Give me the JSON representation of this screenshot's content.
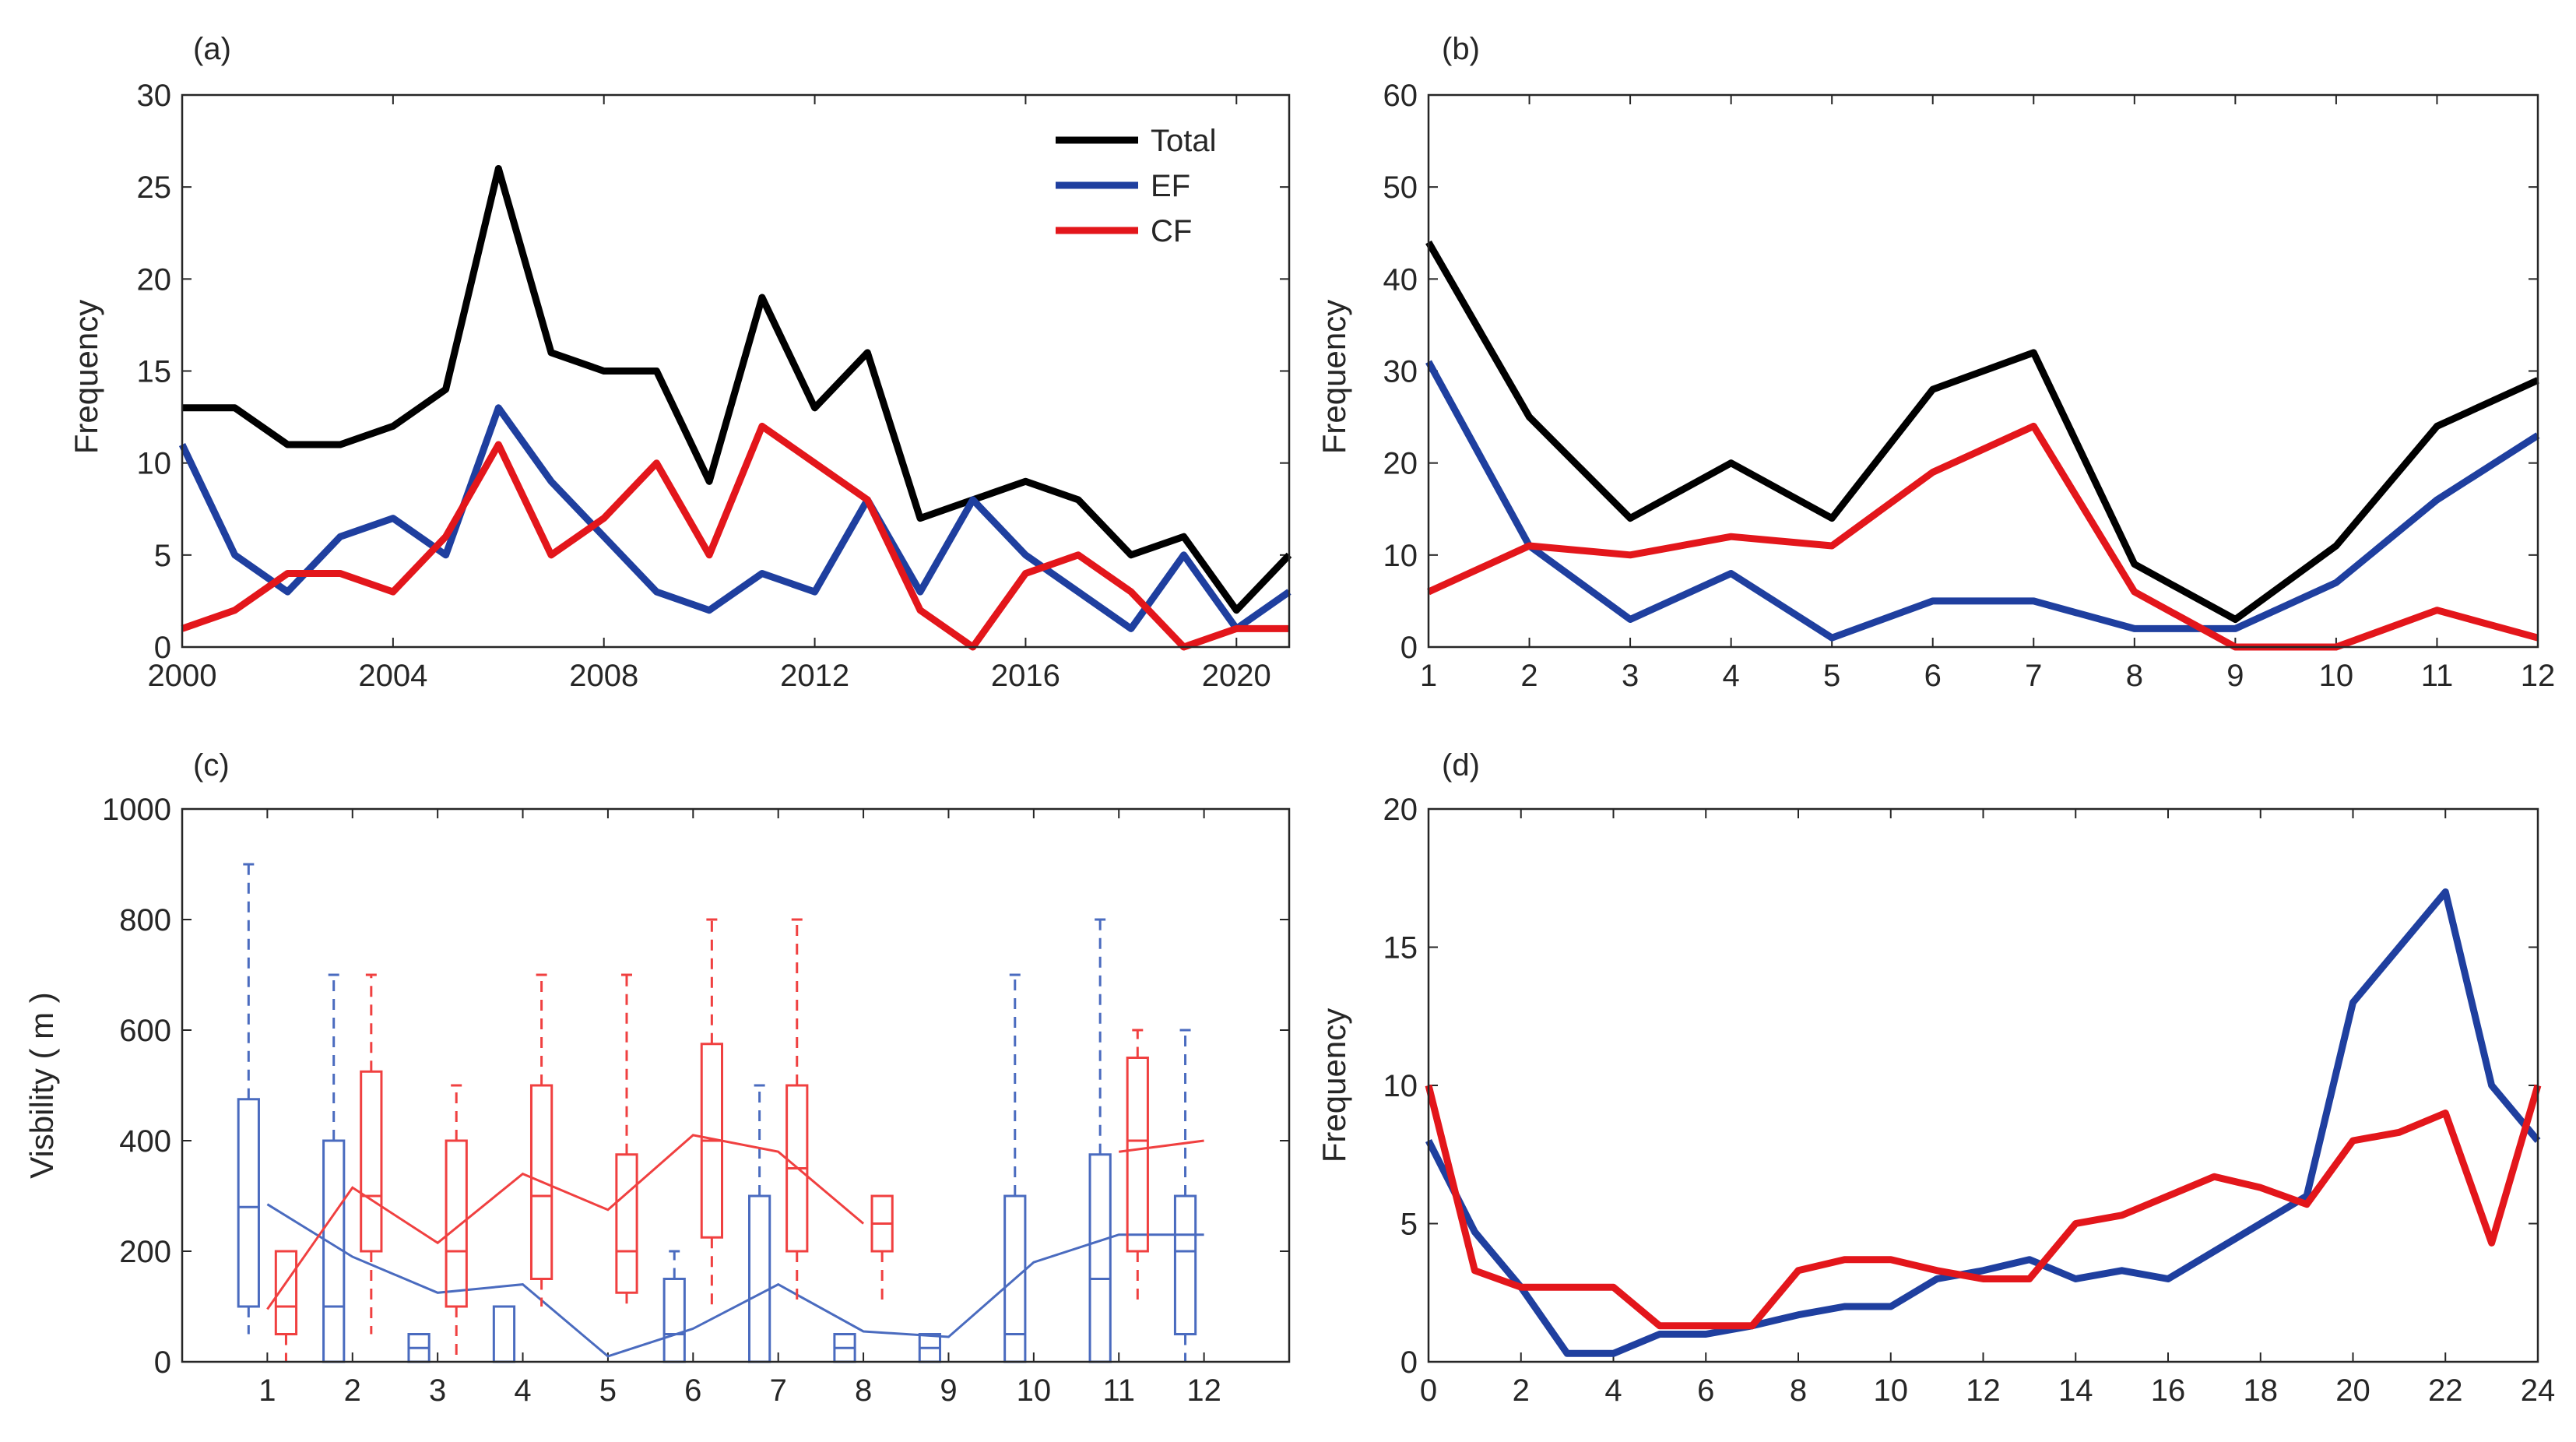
{
  "colors": {
    "total": "#000000",
    "ef": "#1f3f9f",
    "cf": "#e3161b",
    "axis": "#262626",
    "ef_light": "#4a6bbf",
    "cf_light": "#f04040"
  },
  "chart_data": [
    {
      "panel": "(a)",
      "type": "line",
      "ylabel": "Frequency",
      "xlabel": "",
      "xlim": [
        2000,
        2021
      ],
      "ylim": [
        0,
        30
      ],
      "xticks": [
        "2000",
        "2004",
        "2008",
        "2012",
        "2016",
        "2020"
      ],
      "yticks": [
        "0",
        "5",
        "10",
        "15",
        "20",
        "25",
        "30"
      ],
      "x": [
        2000,
        2001,
        2002,
        2003,
        2004,
        2005,
        2006,
        2007,
        2008,
        2009,
        2010,
        2011,
        2012,
        2013,
        2014,
        2015,
        2016,
        2017,
        2018,
        2019,
        2020,
        2021
      ],
      "legend": [
        "Total",
        "EF",
        "CF"
      ],
      "legend_position": "top-right",
      "series": [
        {
          "name": "Total",
          "color": "#000000",
          "values": [
            13,
            13,
            11,
            11,
            12,
            14,
            26,
            16,
            15,
            15,
            9,
            19,
            13,
            16,
            7,
            8,
            9,
            8,
            5,
            6,
            2,
            5
          ]
        },
        {
          "name": "EF",
          "color": "#1f3f9f",
          "values": [
            11,
            5,
            3,
            6,
            7,
            5,
            13,
            9,
            6,
            3,
            2,
            4,
            3,
            8,
            3,
            8,
            5,
            3,
            1,
            5,
            1,
            3
          ]
        },
        {
          "name": "CF",
          "color": "#e3161b",
          "values": [
            1,
            2,
            4,
            4,
            3,
            6,
            11,
            5,
            7,
            10,
            5,
            12,
            10,
            8,
            2,
            0,
            4,
            5,
            3,
            0,
            1,
            1
          ]
        }
      ]
    },
    {
      "panel": "(b)",
      "type": "line",
      "ylabel": "Frequency",
      "xlabel": "",
      "xlim": [
        1,
        12
      ],
      "ylim": [
        0,
        60
      ],
      "xticks": [
        "1",
        "2",
        "3",
        "4",
        "5",
        "6",
        "7",
        "8",
        "9",
        "10",
        "11",
        "12"
      ],
      "yticks": [
        "0",
        "10",
        "20",
        "30",
        "40",
        "50",
        "60"
      ],
      "x": [
        1,
        2,
        3,
        4,
        5,
        6,
        7,
        8,
        9,
        10,
        11,
        12
      ],
      "series": [
        {
          "name": "Total",
          "color": "#000000",
          "values": [
            44,
            25,
            14,
            20,
            14,
            28,
            32,
            9,
            3,
            11,
            24,
            29
          ]
        },
        {
          "name": "EF",
          "color": "#1f3f9f",
          "values": [
            31,
            11,
            3,
            8,
            1,
            5,
            5,
            2,
            2,
            7,
            16,
            23
          ]
        },
        {
          "name": "CF",
          "color": "#e3161b",
          "values": [
            6,
            11,
            10,
            12,
            11,
            19,
            24,
            6,
            0,
            0,
            4,
            1
          ]
        }
      ]
    },
    {
      "panel": "(c)",
      "type": "box",
      "ylabel": "Visbility ( m )",
      "xlabel": "",
      "xlim": [
        0,
        13
      ],
      "ylim": [
        0,
        1000
      ],
      "xticks": [
        "1",
        "2",
        "3",
        "4",
        "5",
        "6",
        "7",
        "8",
        "9",
        "10",
        "11",
        "12"
      ],
      "yticks": [
        "0",
        "200",
        "400",
        "600",
        "800",
        "1000"
      ],
      "series": [
        {
          "name": "EF",
          "color": "#1f3f9f",
          "mean_line": [
            285,
            190,
            125,
            140,
            10,
            60,
            140,
            55,
            45,
            180,
            230,
            230
          ],
          "boxes": [
            {
              "month": 1,
              "min": 50,
              "q1": 100,
              "median": 280,
              "q3": 475,
              "max": 900
            },
            {
              "month": 2,
              "min": 0,
              "q1": 0,
              "median": 100,
              "q3": 400,
              "max": 700
            },
            {
              "month": 3,
              "min": 0,
              "q1": 0,
              "median": 25,
              "q3": 50,
              "max": 50
            },
            {
              "month": 4,
              "min": 0,
              "q1": 0,
              "median": 100,
              "q3": 100,
              "max": 100
            },
            {
              "month": 6,
              "min": 0,
              "q1": 0,
              "median": 50,
              "q3": 150,
              "max": 200
            },
            {
              "month": 7,
              "min": 0,
              "q1": 0,
              "median": 0,
              "q3": 300,
              "max": 500
            },
            {
              "month": 8,
              "min": 0,
              "q1": 0,
              "median": 25,
              "q3": 50,
              "max": 50
            },
            {
              "month": 9,
              "min": 0,
              "q1": 0,
              "median": 25,
              "q3": 50,
              "max": 50
            },
            {
              "month": 10,
              "min": 0,
              "q1": 0,
              "median": 50,
              "q3": 300,
              "max": 700
            },
            {
              "month": 11,
              "min": 0,
              "q1": 0,
              "median": 150,
              "q3": 375,
              "max": 800
            },
            {
              "month": 12,
              "min": 0,
              "q1": 50,
              "median": 200,
              "q3": 300,
              "max": 600
            }
          ]
        },
        {
          "name": "CF",
          "color": "#e3161b",
          "mean_line": [
            95,
            315,
            215,
            340,
            275,
            410,
            380,
            250,
            null,
            null,
            380,
            400
          ],
          "boxes": [
            {
              "month": 1,
              "min": 0,
              "q1": 50,
              "median": 100,
              "q3": 200,
              "max": 200
            },
            {
              "month": 2,
              "min": 50,
              "q1": 200,
              "median": 300,
              "q3": 525,
              "max": 700
            },
            {
              "month": 3,
              "min": 0,
              "q1": 100,
              "median": 200,
              "q3": 400,
              "max": 500
            },
            {
              "month": 4,
              "min": 100,
              "q1": 150,
              "median": 300,
              "q3": 500,
              "max": 700
            },
            {
              "month": 5,
              "min": 100,
              "q1": 125,
              "median": 200,
              "q3": 375,
              "max": 700
            },
            {
              "month": 6,
              "min": 100,
              "q1": 225,
              "median": 400,
              "q3": 575,
              "max": 800
            },
            {
              "month": 7,
              "min": 100,
              "q1": 200,
              "median": 350,
              "q3": 500,
              "max": 800
            },
            {
              "month": 8,
              "min": 100,
              "q1": 200,
              "median": 250,
              "q3": 300,
              "max": 300
            },
            {
              "month": 11,
              "min": 100,
              "q1": 200,
              "median": 400,
              "q3": 550,
              "max": 600
            }
          ]
        }
      ]
    },
    {
      "panel": "(d)",
      "type": "line",
      "ylabel": "Frequency",
      "xlabel": "",
      "xlim": [
        0,
        24
      ],
      "ylim": [
        0,
        20
      ],
      "xticks": [
        "0",
        "2",
        "4",
        "6",
        "8",
        "10",
        "12",
        "14",
        "16",
        "18",
        "20",
        "22",
        "24"
      ],
      "yticks": [
        "0",
        "5",
        "10",
        "15",
        "20"
      ],
      "x": [
        0,
        1,
        2,
        3,
        4,
        5,
        6,
        7,
        8,
        9,
        10,
        11,
        12,
        13,
        14,
        15,
        16,
        17,
        18,
        19,
        20,
        21,
        22,
        23,
        24
      ],
      "series": [
        {
          "name": "EF",
          "color": "#1f3f9f",
          "values": [
            8,
            4.7,
            2.7,
            0.3,
            0.3,
            1,
            1,
            1.3,
            1.7,
            2,
            2,
            3,
            3.3,
            3.7,
            3,
            3.3,
            3,
            4,
            5,
            6,
            13,
            15,
            17,
            10,
            8
          ]
        },
        {
          "name": "CF",
          "color": "#e3161b",
          "values": [
            10,
            3.3,
            2.7,
            2.7,
            2.7,
            1.3,
            1.3,
            1.3,
            3.3,
            3.7,
            3.7,
            3.3,
            3,
            3,
            5,
            5.3,
            6,
            6.7,
            6.3,
            5.7,
            8,
            8.3,
            9,
            4.3,
            10
          ]
        }
      ]
    }
  ]
}
